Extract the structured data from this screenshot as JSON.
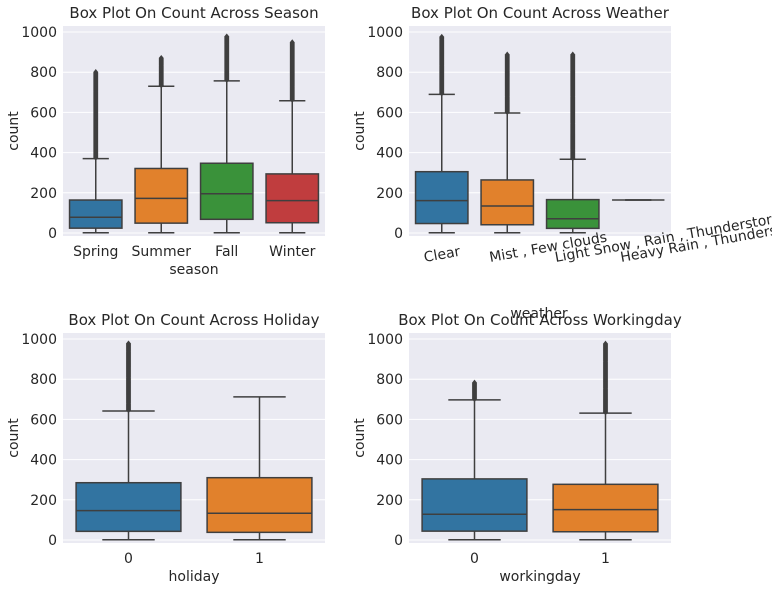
{
  "chart_data": [
    {
      "type": "box",
      "title": "Box Plot On Count Across Season",
      "xlabel": "season",
      "ylabel": "count",
      "ylim": [
        -15,
        1030
      ],
      "yticks": [
        0,
        200,
        400,
        600,
        800,
        1000
      ],
      "grid": true,
      "categories": [
        "Spring",
        "Summer",
        "Fall",
        "Winter"
      ],
      "colors": [
        "#3274a1",
        "#e1812c",
        "#3a923a",
        "#c03d3e"
      ],
      "boxes": [
        {
          "whisker_low": 1,
          "q1": 24,
          "median": 78,
          "q3": 164,
          "whisker_high": 370,
          "outlier_min": 375,
          "outlier_max": 801
        },
        {
          "whisker_low": 1,
          "q1": 49,
          "median": 172,
          "q3": 321,
          "whisker_high": 730,
          "outlier_min": 735,
          "outlier_max": 873
        },
        {
          "whisker_low": 1,
          "q1": 68,
          "median": 195,
          "q3": 347,
          "whisker_high": 757,
          "outlier_min": 762,
          "outlier_max": 977
        },
        {
          "whisker_low": 1,
          "q1": 51,
          "median": 161,
          "q3": 294,
          "whisker_high": 658,
          "outlier_min": 663,
          "outlier_max": 948
        }
      ]
    },
    {
      "type": "box",
      "title": "Box Plot On Count Across Weather",
      "xlabel": "weather",
      "ylabel": "count",
      "ylim": [
        -15,
        1030
      ],
      "yticks": [
        0,
        200,
        400,
        600,
        800,
        1000
      ],
      "grid": true,
      "categories": [
        "Clear",
        "Mist , Few clouds",
        "Light Snow , Rain , Thunderstorm",
        "Heavy Rain , Thunderstorm , Snow , Fog"
      ],
      "colors": [
        "#3274a1",
        "#e1812c",
        "#3a923a",
        "#c03d3e"
      ],
      "boxes": [
        {
          "whisker_low": 1,
          "q1": 47,
          "median": 161,
          "q3": 305,
          "whisker_high": 690,
          "outlier_min": 695,
          "outlier_max": 977
        },
        {
          "whisker_low": 1,
          "q1": 41,
          "median": 134,
          "q3": 264,
          "whisker_high": 597,
          "outlier_min": 602,
          "outlier_max": 890
        },
        {
          "whisker_low": 1,
          "q1": 23,
          "median": 71,
          "q3": 166,
          "whisker_high": 367,
          "outlier_min": 372,
          "outlier_max": 891
        },
        {
          "whisker_low": 164,
          "q1": 164,
          "median": 164,
          "q3": 164,
          "whisker_high": 164,
          "outlier_min": null,
          "outlier_max": null
        }
      ]
    },
    {
      "type": "box",
      "title": "Box Plot On Count Across Holiday",
      "xlabel": "holiday",
      "ylabel": "count",
      "ylim": [
        -15,
        1030
      ],
      "yticks": [
        0,
        200,
        400,
        600,
        800,
        1000
      ],
      "grid": true,
      "categories": [
        "0",
        "1"
      ],
      "colors": [
        "#3274a1",
        "#e1812c"
      ],
      "boxes": [
        {
          "whisker_low": 1,
          "q1": 43,
          "median": 146,
          "q3": 285,
          "whisker_high": 642,
          "outlier_min": 647,
          "outlier_max": 977
        },
        {
          "whisker_low": 1,
          "q1": 38,
          "median": 133,
          "q3": 310,
          "whisker_high": 712,
          "outlier_min": null,
          "outlier_max": null
        }
      ]
    },
    {
      "type": "box",
      "title": "Box Plot On Count Across Workingday",
      "xlabel": "workingday",
      "ylabel": "count",
      "ylim": [
        -15,
        1030
      ],
      "yticks": [
        0,
        200,
        400,
        600,
        800,
        1000
      ],
      "grid": true,
      "categories": [
        "0",
        "1"
      ],
      "colors": [
        "#3274a1",
        "#e1812c"
      ],
      "boxes": [
        {
          "whisker_low": 1,
          "q1": 44,
          "median": 128,
          "q3": 304,
          "whisker_high": 697,
          "outlier_min": 702,
          "outlier_max": 783
        },
        {
          "whisker_low": 1,
          "q1": 41,
          "median": 151,
          "q3": 277,
          "whisker_high": 631,
          "outlier_min": 636,
          "outlier_max": 977
        }
      ]
    }
  ]
}
